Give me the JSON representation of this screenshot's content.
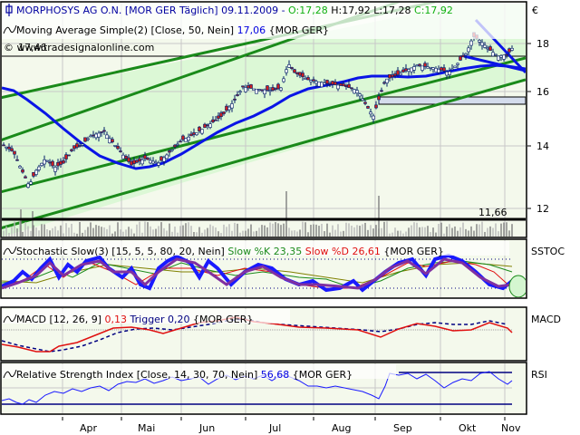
{
  "header": {
    "symbol_icon": "candlestick-icon",
    "title": "MORPHOSYS AG O.N. [MOR GER  Täglich] 09.11.2009 - ",
    "open": "O:17,28",
    "high": "H:17,92",
    "low": "L:17,28",
    "close": "C:17,92",
    "currency": "€",
    "copyright": "© www.tradesignalonline.com",
    "overlay_value": "17,46"
  },
  "ma_legend": {
    "icon": "indicator-wave-icon",
    "label": "Moving Average Simple(2) [Close, 50, Nein] ",
    "value": "17,06",
    "symbol": " {MOR GER}"
  },
  "main_panel": {
    "low_line_label": "11,66",
    "y_ticks": [
      "18",
      "16",
      "14",
      "12"
    ]
  },
  "stoch_panel": {
    "icon": "indicator-wave-icon",
    "label": "Stochastic Slow(3) [15, 5, 5, 80, 20, Nein] ",
    "k_label": "Slow %K 23,35",
    "d_label": " Slow %D 26,61",
    "symbol": " {MOR GER}",
    "side_label": "SSTOC"
  },
  "macd_panel": {
    "icon": "indicator-wave-icon",
    "label": "MACD [12, 26, 9] ",
    "value": "0,13",
    "trigger": " Trigger 0,20",
    "symbol": " {MOR GER}",
    "side_label": "MACD"
  },
  "rsi_panel": {
    "icon": "indicator-wave-icon",
    "label": "Relative Strength Index [Close, 14, 30, 70, Nein] ",
    "value": "56,68",
    "symbol": " {MOR GER}",
    "side_label": "RSI"
  },
  "x_axis": {
    "months": [
      "Apr",
      "Mai",
      "Jun",
      "Jul",
      "Aug",
      "Sep",
      "Okt",
      "Nov"
    ]
  },
  "colors": {
    "frame": "#000000",
    "plot_bg": "#f4f9ec",
    "channel_fill": "#dcf8d6",
    "trend_green": "#1a8a1a",
    "ma_blue": "#0a14e6",
    "candle_up": "#ffffff",
    "candle_down": "#cc2020",
    "candle_outline": "#001a66",
    "open_green": "#10b010",
    "red": "#e01010",
    "navy": "#000080"
  },
  "chart_data": [
    {
      "type": "candlestick",
      "title": "MORPHOSYS AG O.N. [MOR GER Täglich] 09.11.2009",
      "ylabel": "€",
      "ylim": [
        11.3,
        18.8
      ],
      "y_ticks": [
        12,
        14,
        16,
        18
      ],
      "x_ticks": [
        "Apr",
        "Mai",
        "Jun",
        "Jul",
        "Aug",
        "Sep",
        "Okt",
        "Nov"
      ],
      "last_bar": {
        "date": "09.11.2009",
        "open": 17.28,
        "high": 17.92,
        "low": 17.28,
        "close": 17.92
      },
      "overlays": [
        {
          "name": "Moving Average Simple(2) [Close, 50]",
          "last_value": 17.06
        },
        {
          "name": "Horizontal support line",
          "value": 11.66
        },
        {
          "name": "Horizontal resistance line",
          "value": 17.46
        }
      ],
      "approx_close_by_month": {
        "Mar": 12.8,
        "Apr": 13.6,
        "Mai": 14.2,
        "Jun": 15.8,
        "Jul": 16.4,
        "Aug": 15.1,
        "Sep": 17.0,
        "Okt": 17.8,
        "Nov": 17.92
      },
      "grid": true
    },
    {
      "type": "line",
      "title": "Stochastic Slow(3) [15, 5, 5, 80, 20, Nein]",
      "series": [
        {
          "name": "Slow %K",
          "last_value": 23.35
        },
        {
          "name": "Slow %D",
          "last_value": 26.61
        }
      ],
      "levels": [
        20,
        80
      ]
    },
    {
      "type": "line",
      "title": "MACD [12, 26, 9]",
      "series": [
        {
          "name": "MACD",
          "last_value": 0.13
        },
        {
          "name": "Trigger",
          "last_value": 0.2
        }
      ]
    },
    {
      "type": "line",
      "title": "Relative Strength Index [Close, 14, 30, 70, Nein]",
      "series": [
        {
          "name": "RSI",
          "last_value": 56.68
        }
      ],
      "levels": [
        30,
        70
      ]
    }
  ]
}
